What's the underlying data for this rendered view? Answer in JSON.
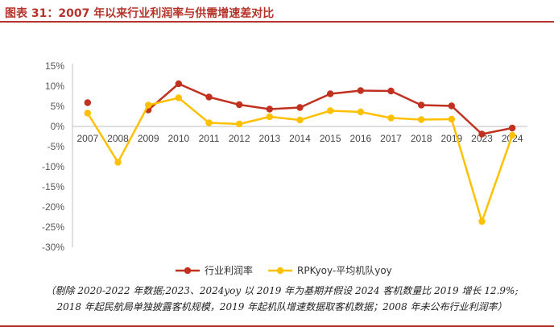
{
  "figure": {
    "title": "图表 31：2007 年以来行业利润率与供需增速差对比",
    "notes": [
      "（剔除 2020-2022 年数据;2023、2024yoy 以 2019 年为基期并假设 2024 客机数量比 2019 增长 12.9%;",
      "2018 年起民航局单独披露客机规模，2019 年起机队增速数据取客机数据；2008 年未公布行业利润率）"
    ]
  },
  "chart_data": {
    "type": "line",
    "title": "",
    "xlabel": "",
    "ylabel": "",
    "categories": [
      "2007",
      "2008",
      "2009",
      "2010",
      "2011",
      "2012",
      "2013",
      "2014",
      "2015",
      "2016",
      "2017",
      "2018",
      "2019",
      "2023",
      "2024"
    ],
    "ylim": [
      -30,
      15
    ],
    "yticks": [
      "15%",
      "10%",
      "5%",
      "0%",
      "-5%",
      "-10%",
      "-15%",
      "-20%",
      "-25%",
      "-30%"
    ],
    "ytick_values": [
      15,
      10,
      5,
      0,
      -5,
      -10,
      -15,
      -20,
      -25,
      -30
    ],
    "legend_position": "bottom",
    "grid": false,
    "series": [
      {
        "name": "行业利润率",
        "color": "#c0311f",
        "values": [
          5.9,
          null,
          4.1,
          10.6,
          7.3,
          5.4,
          4.3,
          4.7,
          8.1,
          8.9,
          8.8,
          5.3,
          5.1,
          -1.9,
          -0.4
        ]
      },
      {
        "name": "RPKyoy-平均机队yoy",
        "color": "#ffc000",
        "values": [
          3.3,
          -8.9,
          5.3,
          7.1,
          0.9,
          0.6,
          2.4,
          1.6,
          3.9,
          3.6,
          2.1,
          1.7,
          1.8,
          -23.6,
          -2.2
        ]
      }
    ]
  }
}
